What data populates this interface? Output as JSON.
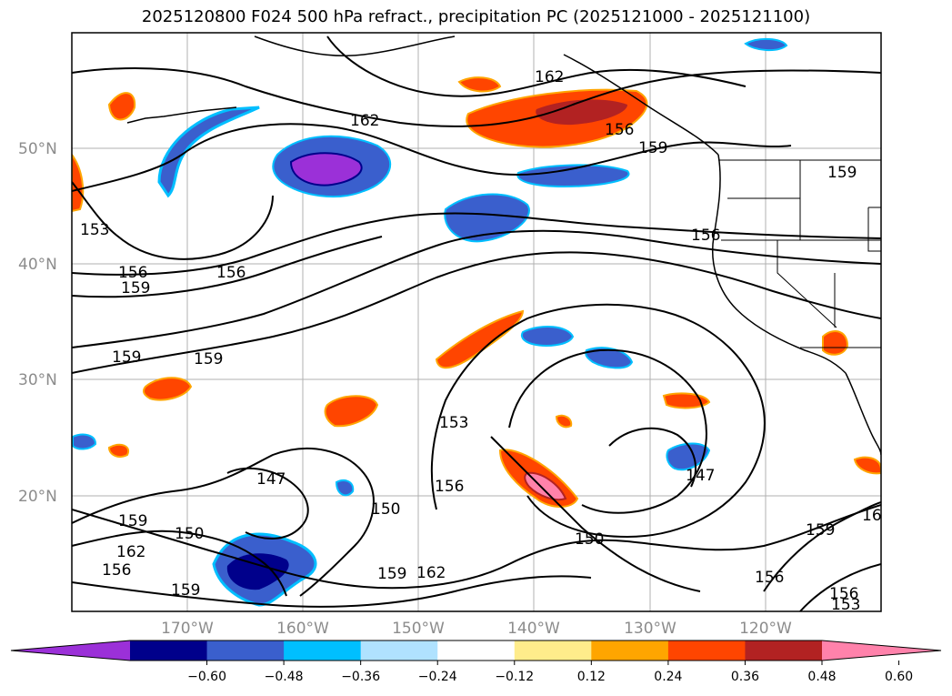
{
  "title": "2025120800 F024 500 hPa refract., precipitation PC (2025121000 - 2025121100)",
  "lat_labels": [
    "50°N",
    "40°N",
    "30°N",
    "20°N"
  ],
  "lon_labels": [
    "170°W",
    "160°W",
    "150°W",
    "140°W",
    "130°W",
    "120°W"
  ],
  "contour_labels": [
    "162",
    "162",
    "156",
    "159",
    "156",
    "153",
    "156",
    "159",
    "156",
    "159",
    "159",
    "153",
    "156",
    "150",
    "147",
    "159",
    "150",
    "162",
    "156",
    "159",
    "162",
    "159",
    "150",
    "147",
    "156",
    "159",
    "156",
    "153",
    "16",
    "159"
  ],
  "colorbar": {
    "ticks": [
      "−0.60",
      "−0.48",
      "−0.36",
      "−0.24",
      "−0.12",
      "0.12",
      "0.24",
      "0.36",
      "0.48",
      "0.60"
    ],
    "colors": [
      "#9b30d8",
      "#00008b",
      "#3a5fcd",
      "#00bfff",
      "#b0e2ff",
      "#ffffff",
      "#ffec8b",
      "#ffa500",
      "#ff4500",
      "#b22222",
      "#ff82ab"
    ]
  },
  "colors": {
    "purple": "#9b30d8",
    "navy": "#00008b",
    "royal_blue": "#3a5fcd",
    "deep_sky": "#00bfff",
    "light_blue": "#b0e2ff",
    "light_yellow": "#ffec8b",
    "orange": "#ffa500",
    "orange_red": "#ff4500",
    "firebrick": "#b22222",
    "pink": "#ff82ab"
  }
}
